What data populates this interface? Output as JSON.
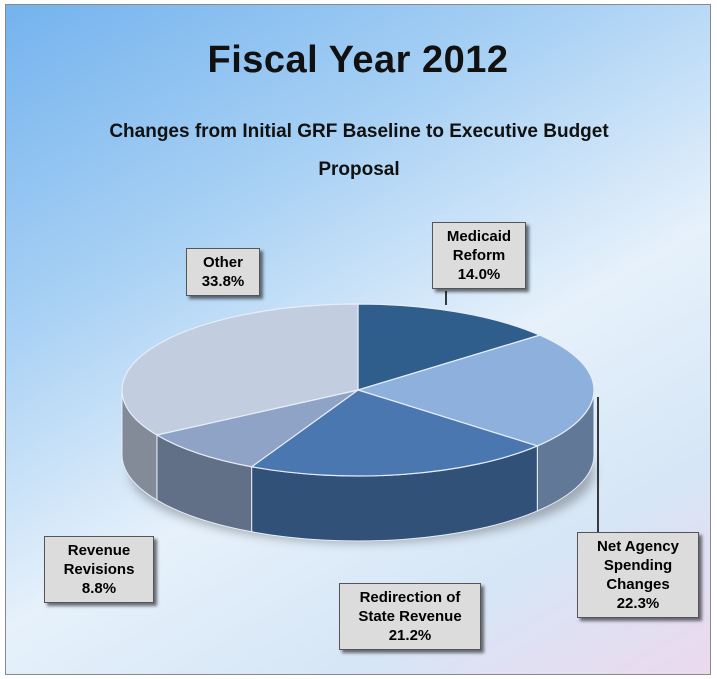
{
  "chart_data": {
    "type": "pie",
    "title": "Fiscal Year 2012",
    "subtitle": "Changes from Initial GRF Baseline to Executive Budget Proposal",
    "slices": [
      {
        "label": "Medicaid Reform",
        "value": 14.0,
        "value_label": "14.0%",
        "color": "#2f5d8c"
      },
      {
        "label": "Net Agency Spending Changes",
        "value": 22.3,
        "value_label": "22.3%",
        "color": "#8eb0dc"
      },
      {
        "label": "Redirection of State Revenue",
        "value": 21.2,
        "value_label": "21.2%",
        "color": "#4a77b0"
      },
      {
        "label": "Revenue Revisions",
        "value": 8.8,
        "value_label": "8.8%",
        "color": "#8fa3c6"
      },
      {
        "label": "Other",
        "value": 33.8,
        "value_label": "33.8%",
        "color": "#c2cde0"
      }
    ],
    "start_angle": "12 o'clock",
    "direction": "clockwise",
    "style": "3d"
  }
}
